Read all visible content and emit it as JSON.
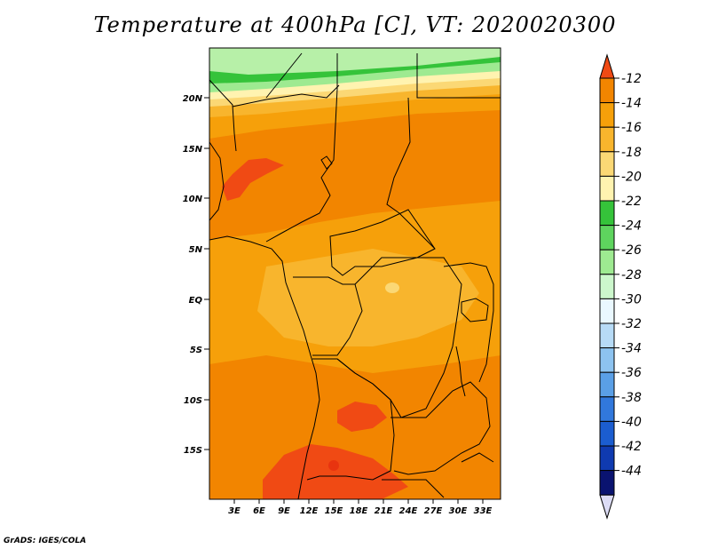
{
  "title": "Temperature at 400hPa [C], VT: 2020020300",
  "credit": "GrADS: IGES/COLA",
  "lat_labels": [
    "20N",
    "15N",
    "10N",
    "5N",
    "EQ",
    "5S",
    "10S",
    "15S"
  ],
  "lon_labels": [
    "3E",
    "6E",
    "9E",
    "12E",
    "15E",
    "18E",
    "21E",
    "24E",
    "27E",
    "30E",
    "33E"
  ],
  "colorbar": {
    "levels": [
      "-12",
      "-14",
      "-16",
      "-18",
      "-20",
      "-22",
      "-24",
      "-26",
      "-28",
      "-30",
      "-32",
      "-34",
      "-36",
      "-38",
      "-40",
      "-42",
      "-44"
    ],
    "colors": [
      "#f04a14",
      "#f28500",
      "#f6a00a",
      "#f8b52d",
      "#fbd875",
      "#fff3b0",
      "#35c33a",
      "#5ed45e",
      "#9eea91",
      "#ccf7cc",
      "#eaf8ff",
      "#b7dbf6",
      "#8dc3f0",
      "#5a9fe6",
      "#3178dc",
      "#1b5dd0",
      "#0f3ab0",
      "#0a1370",
      "#dcdcf5"
    ]
  },
  "colors": {
    "hot": "#f04a14",
    "warm": "#f28500",
    "mid": "#f6a00a",
    "light": "#f8b52d",
    "pale": "#fbd875",
    "cream": "#fff3b0",
    "green": "#35c33a",
    "lightgreen": "#9eea91",
    "border": "#000000"
  }
}
